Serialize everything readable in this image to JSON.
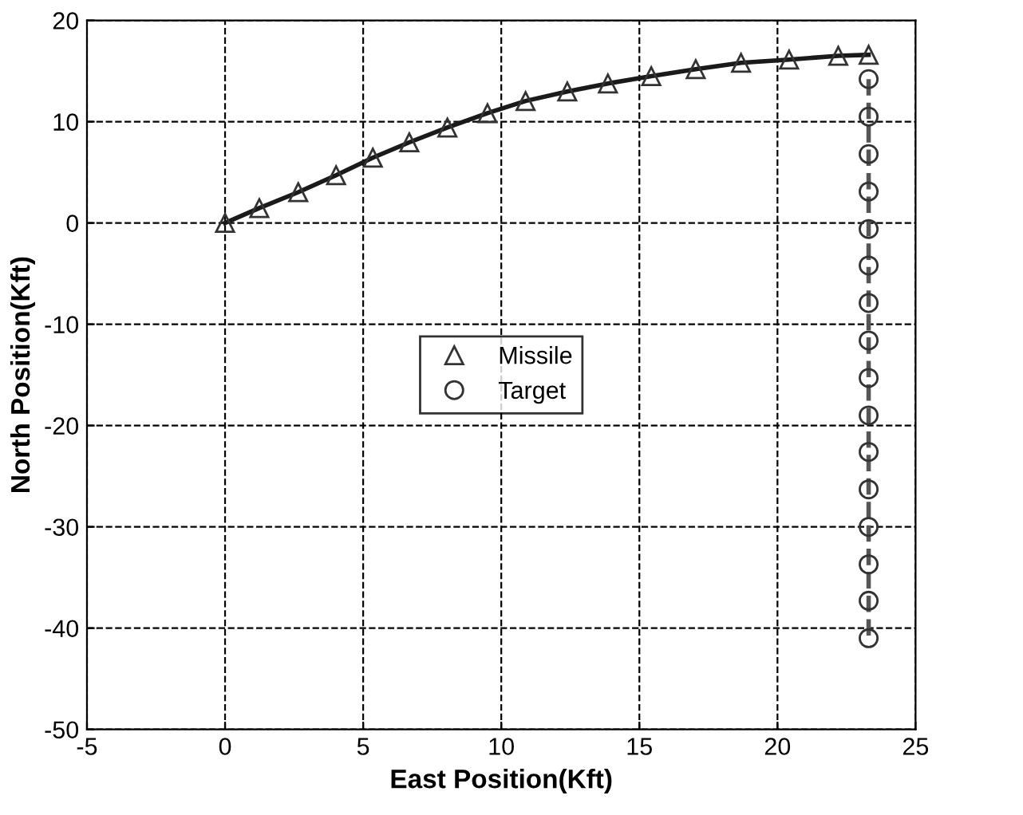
{
  "chart_data": {
    "type": "line",
    "xlabel": "East Position(Kft)",
    "ylabel": "North Position(Kft)",
    "xlim": [
      -5,
      25
    ],
    "xticks": [
      -5,
      0,
      5,
      10,
      15,
      20,
      25
    ],
    "ylim": [
      -50,
      20
    ],
    "yticks": [
      -50,
      -40,
      -30,
      -20,
      -10,
      0,
      10,
      20
    ],
    "grid": true,
    "legend": "center",
    "series": [
      {
        "name": "Missile",
        "color": "#1a1a1a",
        "marker": "triangle",
        "line_style": "solid",
        "x": [
          0,
          1.24,
          2.65,
          4.02,
          5.35,
          6.67,
          8.05,
          9.5,
          10.88,
          12.39,
          13.86,
          15.43,
          17.04,
          18.68,
          20.42,
          22.2,
          23.3
        ],
        "values": [
          0,
          1.47,
          3.04,
          4.71,
          6.44,
          7.96,
          9.42,
          10.84,
          12.04,
          12.98,
          13.77,
          14.5,
          15.18,
          15.81,
          16.13,
          16.5,
          16.6
        ]
      },
      {
        "name": "Target",
        "color": "#555555",
        "marker": "circle",
        "line_style": "dashed",
        "x": [
          23.3,
          23.3,
          23.3,
          23.3,
          23.3,
          23.3,
          23.3,
          23.3,
          23.3,
          23.3,
          23.3,
          23.3,
          23.3,
          23.3,
          23.3,
          23.3
        ],
        "values": [
          14.2,
          10.5,
          6.8,
          3.1,
          -0.6,
          -4.2,
          -7.9,
          -11.6,
          -15.3,
          -19,
          -22.6,
          -26.3,
          -30,
          -33.7,
          -37.3,
          -41
        ]
      }
    ]
  }
}
